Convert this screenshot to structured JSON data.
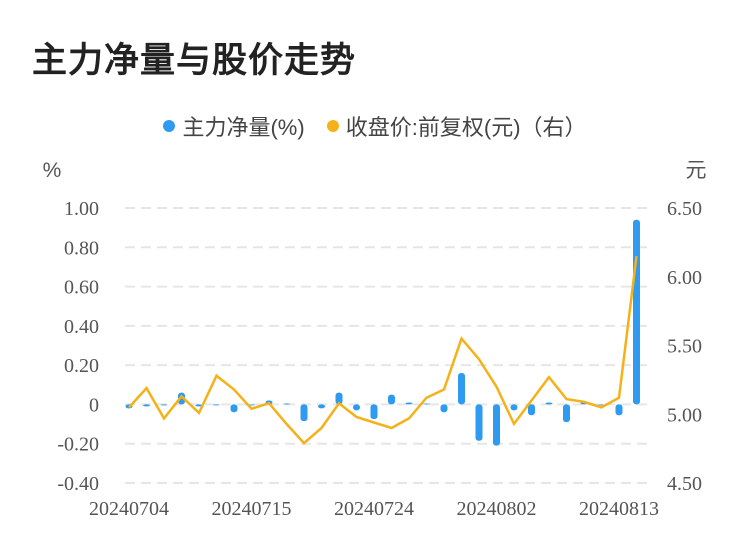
{
  "title": "主力净量与股价走势",
  "legend": [
    {
      "label": "主力净量(%)",
      "color": "#2e9bf0"
    },
    {
      "label": "收盘价:前复权(元)（右）",
      "color": "#f5b118"
    }
  ],
  "chart_data": {
    "type": "bar+line",
    "title": "主力净量与股价走势",
    "left_unit": "%",
    "right_unit": "元",
    "ylim_left": [
      -0.4,
      1.0
    ],
    "ylim_right": [
      4.5,
      6.5
    ],
    "left_ticks": [
      "1.00",
      "0.80",
      "0.60",
      "0.40",
      "0.20",
      "0",
      "-0.20",
      "-0.40"
    ],
    "left_tick_values": [
      1.0,
      0.8,
      0.6,
      0.4,
      0.2,
      0,
      -0.2,
      -0.4
    ],
    "right_ticks": [
      "6.50",
      "6.00",
      "5.50",
      "5.00",
      "4.50"
    ],
    "right_tick_values": [
      6.5,
      6.0,
      5.5,
      5.0,
      4.5
    ],
    "x_tick_labels": [
      "20240704",
      "20240715",
      "20240724",
      "20240802",
      "20240813"
    ],
    "x_tick_indices": [
      0,
      7,
      14,
      21,
      28
    ],
    "grid": true,
    "legend_position": "top",
    "series": [
      {
        "name": "主力净量(%)",
        "type": "bar",
        "axis": "left",
        "color": "#2e9bf0",
        "values": [
          -0.02,
          -0.01,
          -0.005,
          0.06,
          -0.01,
          -0.005,
          -0.04,
          0.0,
          0.02,
          0.005,
          -0.085,
          -0.02,
          0.06,
          -0.03,
          -0.075,
          0.05,
          0.01,
          0.005,
          -0.04,
          0.16,
          -0.185,
          -0.21,
          -0.03,
          -0.055,
          0.01,
          -0.09,
          0.015,
          0.0,
          -0.055,
          0.94
        ]
      },
      {
        "name": "收盘价:前复权(元)（右）",
        "type": "line",
        "axis": "right",
        "color": "#f5b118",
        "values": [
          5.05,
          5.19,
          4.97,
          5.13,
          5.01,
          5.28,
          5.18,
          5.04,
          5.08,
          4.93,
          4.79,
          4.9,
          5.08,
          4.98,
          4.94,
          4.9,
          4.97,
          5.12,
          5.18,
          5.55,
          5.4,
          5.2,
          4.93,
          5.1,
          5.27,
          5.11,
          5.09,
          5.05,
          5.12,
          6.15
        ]
      }
    ]
  }
}
